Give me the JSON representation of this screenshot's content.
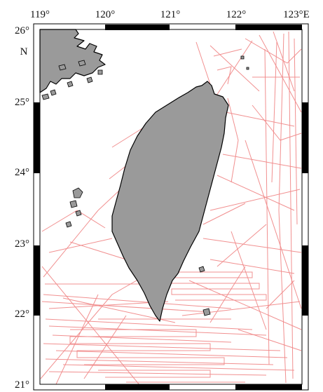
{
  "map": {
    "lon_labels": [
      "119°",
      "120°",
      "121°",
      "122°",
      "123°E"
    ],
    "lat_labels": [
      "26°",
      "25°",
      "24°",
      "23°",
      "22°",
      "21°"
    ],
    "north_letter": "N",
    "extent": {
      "lon": [
        119,
        123
      ],
      "lat": [
        21,
        26
      ]
    },
    "projection": "mercator",
    "frame_style": "alternating black/white border bars (1 degree)",
    "colors": {
      "land": "#9a9a9a",
      "coastline": "#000000",
      "ship_tracks": "#f08a8a",
      "ocean": "#ffffff",
      "frame": "#000000"
    },
    "features": [
      "taiwan-island",
      "china-coast",
      "penghu-islands",
      "ship-track-lines"
    ]
  }
}
